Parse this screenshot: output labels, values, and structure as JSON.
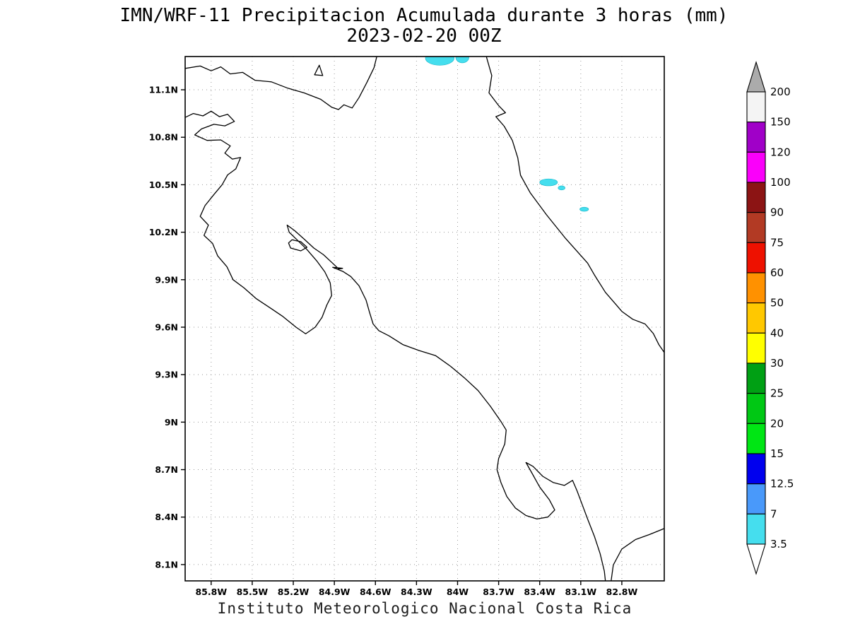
{
  "title": {
    "line1": "IMN/WRF-11 Precipitacion Acumulada durante 3 horas (mm)",
    "line2": "2023-02-20 00Z"
  },
  "footer": "Instituto Meteorologico Nacional Costa Rica",
  "chart_data": {
    "type": "heatmap",
    "subtype": "filled-contour-precipitation-map",
    "title": "IMN/WRF-11 Precipitacion Acumulada durante 3 horas (mm)",
    "subtitle": "2023-02-20 00Z",
    "units": "mm",
    "grid": "dotted",
    "lon_range": [
      -85.99,
      -82.49
    ],
    "lat_range": [
      7.997,
      11.31
    ],
    "x_axis": {
      "values": [
        -85.8,
        -85.5,
        -85.2,
        -84.9,
        -84.6,
        -84.3,
        -84.0,
        -83.7,
        -83.4,
        -83.1,
        -82.8
      ],
      "labels": [
        "85.8W",
        "85.5W",
        "85.2W",
        "84.9W",
        "84.6W",
        "84.3W",
        "84W",
        "83.7W",
        "83.4W",
        "83.1W",
        "82.8W"
      ]
    },
    "y_axis": {
      "values": [
        11.1,
        10.8,
        10.5,
        10.2,
        9.9,
        9.6,
        9.3,
        9.0,
        8.7,
        8.4,
        8.1
      ],
      "labels": [
        "11.1N",
        "10.8N",
        "10.5N",
        "10.2N",
        "9.9N",
        "9.6N",
        "9.3N",
        "9N",
        "8.7N",
        "8.4N",
        "8.1N"
      ]
    },
    "colorbar": {
      "position": "right",
      "levels": [
        "200",
        "150",
        "120",
        "100",
        "90",
        "75",
        "60",
        "50",
        "40",
        "30",
        "25",
        "20",
        "15",
        "12.5",
        "7",
        "3.5"
      ],
      "band_colors_top_to_bottom": [
        "#F4F4F4",
        "#A000C8",
        "#FA00FA",
        "#8C1414",
        "#B23A24",
        "#EE1100",
        "#FF9100",
        "#FFC800",
        "#FFFF00",
        "#00A014",
        "#00C814",
        "#00E614",
        "#0000EE",
        "#4999FA",
        "#45DEEE"
      ],
      "over_arrow_color": "#ABABAB",
      "under_arrow_color": "#FFFFFF"
    },
    "precip_patches": [
      {
        "lon": -84.13,
        "lat": 11.3,
        "rx_deg": 0.105,
        "ry_deg": 0.045,
        "value_range": "3.5-7",
        "color": "#45DEEE"
      },
      {
        "lon": -83.965,
        "lat": 11.305,
        "rx_deg": 0.048,
        "ry_deg": 0.035,
        "value_range": "3.5-7",
        "color": "#45DEEE"
      },
      {
        "lon": -83.335,
        "lat": 10.515,
        "rx_deg": 0.065,
        "ry_deg": 0.022,
        "value_range": "3.5-7",
        "color": "#45DEEE"
      },
      {
        "lon": -83.24,
        "lat": 10.48,
        "rx_deg": 0.026,
        "ry_deg": 0.013,
        "value_range": "3.5-7",
        "color": "#45DEEE"
      },
      {
        "lon": -83.075,
        "lat": 10.345,
        "rx_deg": 0.032,
        "ry_deg": 0.013,
        "value_range": "3.5-7",
        "color": "#45DEEE"
      }
    ],
    "coastlines": [
      {
        "name": "lake-nicaragua-shore",
        "closed": false,
        "points": [
          [
            -85.99,
            11.235
          ],
          [
            -85.88,
            11.25
          ],
          [
            -85.8,
            11.22
          ],
          [
            -85.73,
            11.245
          ],
          [
            -85.66,
            11.2
          ],
          [
            -85.57,
            11.21
          ],
          [
            -85.48,
            11.16
          ],
          [
            -85.36,
            11.15
          ],
          [
            -85.24,
            11.11
          ],
          [
            -85.12,
            11.08
          ],
          [
            -85.0,
            11.04
          ],
          [
            -84.92,
            10.99
          ],
          [
            -84.87,
            10.975
          ],
          [
            -84.83,
            11.005
          ],
          [
            -84.77,
            10.985
          ],
          [
            -84.72,
            11.05
          ],
          [
            -84.66,
            11.15
          ],
          [
            -84.61,
            11.24
          ],
          [
            -84.59,
            11.31
          ]
        ]
      },
      {
        "name": "lake-island",
        "closed": true,
        "points": [
          [
            -85.045,
            11.195
          ],
          [
            -84.985,
            11.19
          ],
          [
            -85.01,
            11.255
          ]
        ]
      },
      {
        "name": "caribbean-coast",
        "closed": false,
        "points": [
          [
            -83.79,
            11.31
          ],
          [
            -83.75,
            11.19
          ],
          [
            -83.77,
            11.08
          ],
          [
            -83.7,
            11.0
          ],
          [
            -83.65,
            10.955
          ],
          [
            -83.72,
            10.93
          ],
          [
            -83.66,
            10.87
          ],
          [
            -83.6,
            10.78
          ],
          [
            -83.56,
            10.67
          ],
          [
            -83.54,
            10.56
          ],
          [
            -83.47,
            10.45
          ],
          [
            -83.35,
            10.31
          ],
          [
            -83.21,
            10.16
          ],
          [
            -83.05,
            10.005
          ],
          [
            -83.0,
            9.93
          ],
          [
            -82.92,
            9.82
          ],
          [
            -82.84,
            9.74
          ],
          [
            -82.8,
            9.7
          ],
          [
            -82.72,
            9.65
          ],
          [
            -82.63,
            9.62
          ],
          [
            -82.57,
            9.56
          ],
          [
            -82.53,
            9.49
          ],
          [
            -82.49,
            9.44
          ]
        ]
      },
      {
        "name": "pacific-coast",
        "closed": false,
        "points": [
          [
            -85.99,
            10.925
          ],
          [
            -85.93,
            10.95
          ],
          [
            -85.86,
            10.935
          ],
          [
            -85.8,
            10.965
          ],
          [
            -85.74,
            10.93
          ],
          [
            -85.68,
            10.945
          ],
          [
            -85.63,
            10.9
          ],
          [
            -85.7,
            10.872
          ],
          [
            -85.78,
            10.882
          ],
          [
            -85.87,
            10.853
          ],
          [
            -85.92,
            10.815
          ],
          [
            -85.83,
            10.78
          ],
          [
            -85.73,
            10.783
          ],
          [
            -85.66,
            10.745
          ],
          [
            -85.7,
            10.7
          ],
          [
            -85.645,
            10.662
          ],
          [
            -85.585,
            10.672
          ],
          [
            -85.62,
            10.6
          ],
          [
            -85.68,
            10.562
          ],
          [
            -85.72,
            10.5
          ],
          [
            -85.78,
            10.438
          ],
          [
            -85.845,
            10.368
          ],
          [
            -85.88,
            10.3
          ],
          [
            -85.82,
            10.245
          ],
          [
            -85.852,
            10.18
          ],
          [
            -85.79,
            10.13
          ],
          [
            -85.752,
            10.05
          ],
          [
            -85.685,
            9.982
          ],
          [
            -85.64,
            9.9
          ],
          [
            -85.56,
            9.848
          ],
          [
            -85.47,
            9.78
          ],
          [
            -85.38,
            9.728
          ],
          [
            -85.28,
            9.67
          ],
          [
            -85.18,
            9.6
          ],
          [
            -85.11,
            9.558
          ],
          [
            -85.04,
            9.6
          ],
          [
            -84.99,
            9.662
          ],
          [
            -84.955,
            9.74
          ],
          [
            -84.92,
            9.8
          ],
          [
            -84.93,
            9.88
          ],
          [
            -84.97,
            9.95
          ],
          [
            -85.03,
            10.02
          ],
          [
            -85.1,
            10.09
          ],
          [
            -85.17,
            10.15
          ],
          [
            -85.23,
            10.2
          ],
          [
            -85.245,
            10.245
          ],
          [
            -85.19,
            10.21
          ],
          [
            -85.125,
            10.16
          ],
          [
            -85.05,
            10.1
          ],
          [
            -84.98,
            10.058
          ],
          [
            -84.92,
            10.01
          ],
          [
            -84.868,
            9.968
          ],
          [
            -84.84,
            9.972
          ],
          [
            -84.912,
            9.978
          ],
          [
            -84.838,
            9.952
          ],
          [
            -84.78,
            9.92
          ],
          [
            -84.72,
            9.862
          ],
          [
            -84.668,
            9.77
          ],
          [
            -84.645,
            9.7
          ],
          [
            -84.617,
            9.62
          ],
          [
            -84.575,
            9.578
          ],
          [
            -84.5,
            9.545
          ],
          [
            -84.4,
            9.49
          ],
          [
            -84.28,
            9.452
          ],
          [
            -84.16,
            9.42
          ],
          [
            -84.05,
            9.352
          ],
          [
            -83.95,
            9.28
          ],
          [
            -83.85,
            9.2
          ],
          [
            -83.76,
            9.1
          ],
          [
            -83.68,
            9.0
          ],
          [
            -83.645,
            8.95
          ],
          [
            -83.655,
            8.862
          ],
          [
            -83.7,
            8.77
          ],
          [
            -83.712,
            8.7
          ],
          [
            -83.683,
            8.618
          ],
          [
            -83.64,
            8.53
          ],
          [
            -83.578,
            8.458
          ],
          [
            -83.5,
            8.41
          ],
          [
            -83.42,
            8.388
          ],
          [
            -83.34,
            8.4
          ],
          [
            -83.29,
            8.445
          ],
          [
            -83.33,
            8.51
          ],
          [
            -83.4,
            8.59
          ],
          [
            -83.458,
            8.68
          ],
          [
            -83.5,
            8.745
          ],
          [
            -83.448,
            8.72
          ],
          [
            -83.378,
            8.658
          ],
          [
            -83.3,
            8.618
          ],
          [
            -83.22,
            8.6
          ],
          [
            -83.16,
            8.632
          ],
          [
            -83.128,
            8.568
          ],
          [
            -83.09,
            8.48
          ],
          [
            -83.05,
            8.388
          ],
          [
            -83.0,
            8.278
          ],
          [
            -82.958,
            8.168
          ],
          [
            -82.928,
            8.058
          ],
          [
            -82.92,
            7.997
          ]
        ]
      },
      {
        "name": "panama-pacific-coast",
        "closed": false,
        "points": [
          [
            -82.878,
            7.997
          ],
          [
            -82.862,
            8.098
          ],
          [
            -82.8,
            8.198
          ],
          [
            -82.7,
            8.258
          ],
          [
            -82.598,
            8.29
          ],
          [
            -82.49,
            8.328
          ]
        ]
      },
      {
        "name": "chira-island",
        "closed": true,
        "points": [
          [
            -85.21,
            10.152
          ],
          [
            -85.145,
            10.14
          ],
          [
            -85.1,
            10.105
          ],
          [
            -85.145,
            10.082
          ],
          [
            -85.22,
            10.1
          ],
          [
            -85.235,
            10.132
          ]
        ]
      }
    ]
  }
}
